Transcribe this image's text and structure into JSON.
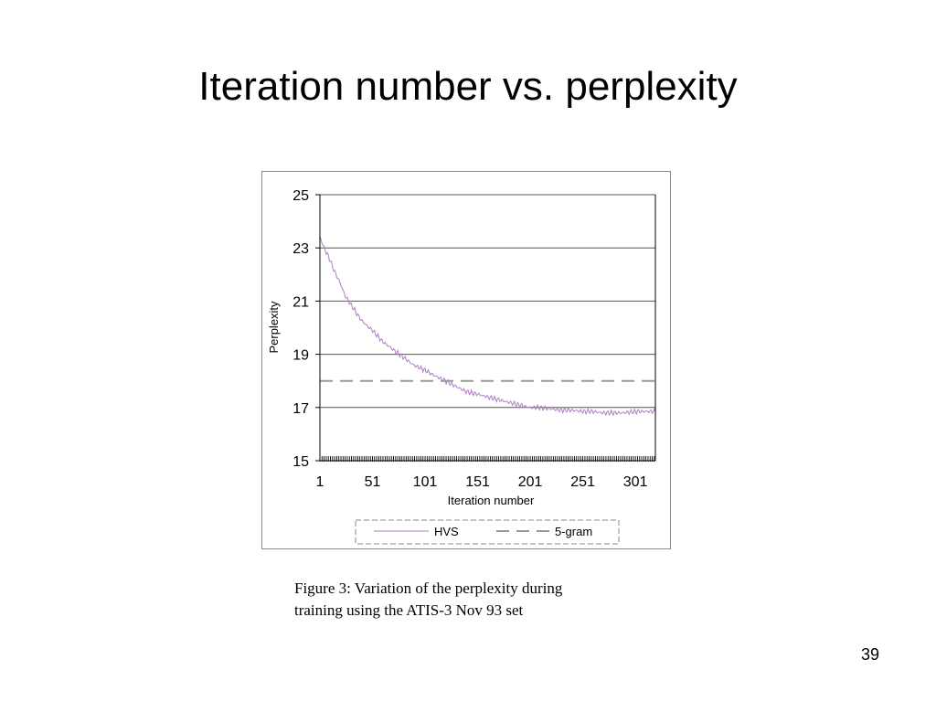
{
  "slide": {
    "title": "Iteration number vs. perplexity",
    "caption_line1": "Figure 3: Variation of the perplexity during",
    "caption_line2": "training using the ATIS-3 Nov 93 set",
    "page_number": "39"
  },
  "chart_data": {
    "type": "line",
    "title": "",
    "xlabel": "Iteration number",
    "ylabel": "Perplexity",
    "xlim": [
      1,
      320
    ],
    "ylim": [
      15,
      25
    ],
    "x_ticks": [
      1,
      51,
      101,
      151,
      201,
      251,
      301
    ],
    "y_ticks": [
      15,
      17,
      19,
      21,
      23,
      25
    ],
    "grid": "horizontal",
    "legend": "bottom",
    "series": [
      {
        "name": "HVS",
        "style": "solid",
        "color": "#b07fc4",
        "x": [
          1,
          3,
          5,
          10,
          15,
          20,
          25,
          30,
          35,
          40,
          45,
          51,
          60,
          70,
          80,
          90,
          101,
          110,
          120,
          130,
          140,
          151,
          160,
          170,
          180,
          190,
          201,
          210,
          220,
          230,
          240,
          251,
          260,
          270,
          280,
          290,
          301,
          310,
          320
        ],
        "y": [
          23.4,
          23.2,
          23.0,
          22.6,
          22.1,
          21.7,
          21.2,
          20.9,
          20.6,
          20.3,
          20.1,
          19.9,
          19.5,
          19.2,
          18.9,
          18.6,
          18.4,
          18.2,
          18.0,
          17.8,
          17.6,
          17.5,
          17.4,
          17.3,
          17.2,
          17.1,
          17.0,
          17.0,
          16.95,
          16.9,
          16.9,
          16.85,
          16.85,
          16.8,
          16.8,
          16.8,
          16.85,
          16.85,
          16.85
        ]
      },
      {
        "name": "5-gram",
        "style": "dashed",
        "color": "#9a9a9a",
        "x": [
          1,
          320
        ],
        "y": [
          18,
          18
        ]
      }
    ]
  }
}
